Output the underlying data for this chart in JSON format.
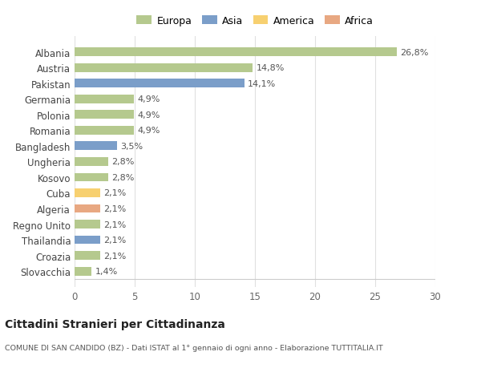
{
  "countries": [
    "Slovacchia",
    "Croazia",
    "Thailandia",
    "Regno Unito",
    "Algeria",
    "Cuba",
    "Kosovo",
    "Ungheria",
    "Bangladesh",
    "Romania",
    "Polonia",
    "Germania",
    "Pakistan",
    "Austria",
    "Albania"
  ],
  "values": [
    1.4,
    2.1,
    2.1,
    2.1,
    2.1,
    2.1,
    2.8,
    2.8,
    3.5,
    4.9,
    4.9,
    4.9,
    14.1,
    14.8,
    26.8
  ],
  "labels": [
    "1,4%",
    "2,1%",
    "2,1%",
    "2,1%",
    "2,1%",
    "2,1%",
    "2,8%",
    "2,8%",
    "3,5%",
    "4,9%",
    "4,9%",
    "4,9%",
    "14,1%",
    "14,8%",
    "26,8%"
  ],
  "continents": [
    "Europa",
    "Europa",
    "Asia",
    "Europa",
    "Africa",
    "America",
    "Europa",
    "Europa",
    "Asia",
    "Europa",
    "Europa",
    "Europa",
    "Asia",
    "Europa",
    "Europa"
  ],
  "continent_colors": {
    "Europa": "#b5c98e",
    "Asia": "#7b9ec9",
    "America": "#f7d070",
    "Africa": "#e8a882"
  },
  "legend_order": [
    "Europa",
    "Asia",
    "America",
    "Africa"
  ],
  "title": "Cittadini Stranieri per Cittadinanza",
  "subtitle": "COMUNE DI SAN CANDIDO (BZ) - Dati ISTAT al 1° gennaio di ogni anno - Elaborazione TUTTITALIA.IT",
  "xlim": [
    0,
    30
  ],
  "xticks": [
    0,
    5,
    10,
    15,
    20,
    25,
    30
  ],
  "background_color": "#ffffff",
  "grid_color": "#e0e0e0"
}
